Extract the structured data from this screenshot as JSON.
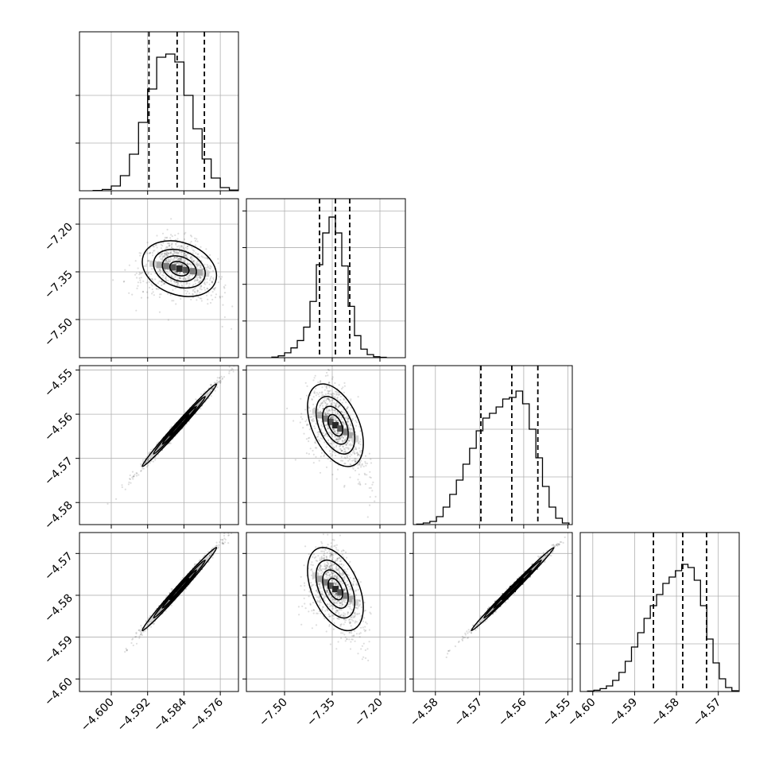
{
  "chart_data": {
    "type": "corner",
    "n_params": 4,
    "grid": true,
    "params": [
      {
        "range": [
          -4.607,
          -4.572
        ],
        "ticks": [
          -4.6,
          -4.592,
          -4.584,
          -4.576
        ],
        "tick_labels": [
          "−4.600",
          "−4.592",
          "−4.584",
          "−4.576"
        ],
        "mean": -4.585,
        "sd": 0.0042
      },
      {
        "range": [
          -7.62,
          -7.12
        ],
        "ticks": [
          -7.5,
          -7.35,
          -7.2
        ],
        "tick_labels": [
          "−7.50",
          "−7.35",
          "−7.20"
        ],
        "mean": -7.34,
        "sd": 0.045
      },
      {
        "range": [
          -4.585,
          -4.549
        ],
        "ticks": [
          -4.58,
          -4.57,
          -4.56,
          -4.55
        ],
        "tick_labels": [
          "−4.58",
          "−4.57",
          "−4.56",
          "−4.55"
        ],
        "mean": -4.5625,
        "sd": 0.0048
      },
      {
        "range": [
          -4.603,
          -4.565
        ],
        "ticks": [
          -4.6,
          -4.59,
          -4.58,
          -4.57
        ],
        "tick_labels": [
          "−4.60",
          "−4.59",
          "−4.58",
          "−4.57"
        ],
        "mean": -4.5785,
        "sd": 0.0051
      }
    ],
    "diagonal": [
      {
        "param": 0,
        "quantiles": [
          -4.5917,
          -4.5855,
          -4.5795
        ],
        "bins_x": [
          -4.603,
          -4.601,
          -4.599,
          -4.597,
          -4.595,
          -4.593,
          -4.591,
          -4.589,
          -4.587,
          -4.585,
          -4.583,
          -4.581,
          -4.579,
          -4.577,
          -4.575,
          -4.573
        ],
        "counts": [
          2,
          8,
          30,
          95,
          230,
          430,
          640,
          840,
          860,
          810,
          600,
          390,
          200,
          80,
          20,
          4
        ],
        "ylim": [
          0,
          1000
        ],
        "yticks": [
          300,
          600
        ]
      },
      {
        "param": 1,
        "quantiles": [
          -7.39,
          -7.34,
          -7.295
        ],
        "bins_x": [
          -7.53,
          -7.51,
          -7.49,
          -7.47,
          -7.45,
          -7.43,
          -7.41,
          -7.39,
          -7.37,
          -7.35,
          -7.33,
          -7.31,
          -7.29,
          -7.27,
          -7.25,
          -7.23,
          -7.21,
          -7.19
        ],
        "counts": [
          5,
          15,
          40,
          80,
          140,
          250,
          460,
          760,
          1020,
          1150,
          1020,
          750,
          420,
          180,
          70,
          25,
          8,
          3
        ],
        "ylim": [
          0,
          1300
        ],
        "yticks": [
          300,
          600,
          900,
          1200
        ]
      },
      {
        "param": 2,
        "quantiles": [
          -4.5697,
          -4.5627,
          -4.5568
        ],
        "bins_x": [
          -4.5835,
          -4.582,
          -4.5805,
          -4.579,
          -4.5775,
          -4.576,
          -4.5745,
          -4.573,
          -4.5715,
          -4.57,
          -4.5685,
          -4.567,
          -4.5655,
          -4.564,
          -4.5625,
          -4.561,
          -4.5595,
          -4.558,
          -4.5565,
          -4.555,
          -4.5535,
          -4.552,
          -4.5505
        ],
        "counts": [
          3,
          10,
          20,
          50,
          110,
          190,
          280,
          380,
          480,
          590,
          670,
          700,
          740,
          790,
          800,
          840,
          760,
          600,
          420,
          240,
          110,
          40,
          10
        ],
        "ylim": [
          0,
          1000
        ],
        "yticks": [
          300,
          600
        ]
      },
      {
        "param": 3,
        "quantiles": [
          -4.5855,
          -4.5785,
          -4.5728
        ],
        "bins_x": [
          -4.6005,
          -4.599,
          -4.5975,
          -4.596,
          -4.5945,
          -4.593,
          -4.5915,
          -4.59,
          -4.5885,
          -4.587,
          -4.5855,
          -4.584,
          -4.5825,
          -4.581,
          -4.5795,
          -4.578,
          -4.5765,
          -4.575,
          -4.5735,
          -4.572,
          -4.5705,
          -4.569,
          -4.5675,
          -4.566
        ],
        "counts": [
          3,
          8,
          18,
          35,
          70,
          120,
          190,
          280,
          370,
          460,
          540,
          610,
          680,
          720,
          760,
          800,
          780,
          700,
          540,
          330,
          180,
          80,
          25,
          5
        ],
        "ylim": [
          0,
          1000
        ],
        "yticks": [
          300,
          600
        ]
      }
    ],
    "scatter_panels": [
      {
        "x": 0,
        "y": 1,
        "rho": -0.25
      },
      {
        "x": 0,
        "y": 2,
        "rho": 0.992
      },
      {
        "x": 1,
        "y": 2,
        "rho": -0.45
      },
      {
        "x": 0,
        "y": 3,
        "rho": 0.992
      },
      {
        "x": 1,
        "y": 3,
        "rho": -0.45
      },
      {
        "x": 2,
        "y": 3,
        "rho": 0.995
      }
    ]
  }
}
